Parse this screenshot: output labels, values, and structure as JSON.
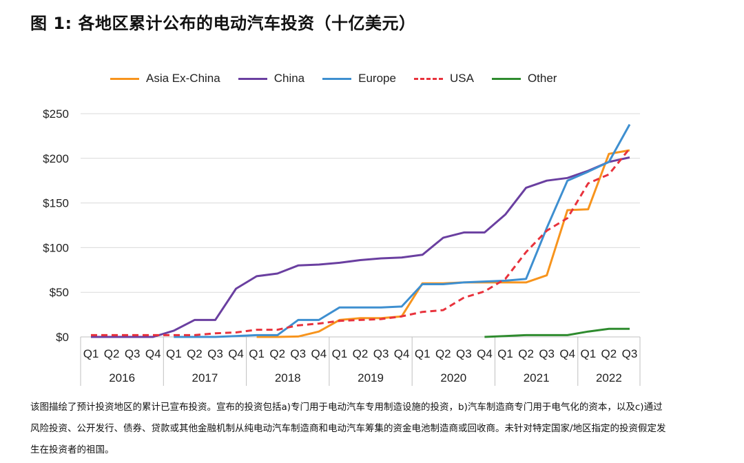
{
  "title": "图 1:  各地区累计公布的电动汽车投资（十亿美元）",
  "caption": "该图描绘了预计投资地区的累计已宣布投资。宣布的投资包括a)专门用于电动汽车专用制造设施的投资，b)汽车制造商专门用于电气化的资本，以及c)通过风险投资、公开发行、债券、贷款或其他金融机制从纯电动汽车制造商和电动汽车筹集的资金电池制造商或回收商。未针对特定国家/地区指定的投资假定发生在投资者的祖国。",
  "chart_data": {
    "type": "line",
    "title": "图 1:  各地区累计公布的电动汽车投资（十亿美元）",
    "xlabel": "",
    "ylabel": "",
    "ylim": [
      0,
      250
    ],
    "yticks": [
      0,
      50,
      100,
      150,
      200,
      250
    ],
    "ytick_labels": [
      "$0",
      "$50",
      "$100",
      "$150",
      "$200",
      "$250"
    ],
    "grid": "horizontal",
    "legend_position": "top",
    "quarters": [
      "Q1",
      "Q2",
      "Q3",
      "Q4",
      "Q1",
      "Q2",
      "Q3",
      "Q4",
      "Q1",
      "Q2",
      "Q3",
      "Q4",
      "Q1",
      "Q2",
      "Q3",
      "Q4",
      "Q1",
      "Q2",
      "Q3",
      "Q4",
      "Q1",
      "Q2",
      "Q3",
      "Q4",
      "Q1",
      "Q2",
      "Q3"
    ],
    "years": [
      {
        "label": "2016",
        "quarters": 4
      },
      {
        "label": "2017",
        "quarters": 4
      },
      {
        "label": "2018",
        "quarters": 4
      },
      {
        "label": "2019",
        "quarters": 4
      },
      {
        "label": "2020",
        "quarters": 4
      },
      {
        "label": "2021",
        "quarters": 4
      },
      {
        "label": "2022",
        "quarters": 3
      }
    ],
    "series": [
      {
        "name": "Asia Ex-China",
        "color": "#F7941D",
        "dash": false,
        "values": [
          null,
          null,
          null,
          null,
          null,
          null,
          null,
          null,
          0,
          0,
          0.5,
          6,
          19,
          21,
          21,
          23,
          60,
          60,
          61,
          61,
          61,
          61,
          69,
          142,
          143,
          205,
          209
        ]
      },
      {
        "name": "China",
        "color": "#6A3FA0",
        "dash": false,
        "values": [
          0,
          0,
          0,
          0,
          7,
          19,
          19,
          54,
          68,
          71,
          80,
          81,
          83,
          86,
          88,
          89,
          92,
          111,
          117,
          117,
          137,
          167,
          175,
          178,
          186,
          196,
          201
        ]
      },
      {
        "name": "Europe",
        "color": "#3E8FD0",
        "dash": false,
        "values": [
          null,
          null,
          null,
          null,
          0,
          0,
          0,
          1,
          2,
          2,
          19,
          19,
          33,
          33,
          33,
          34,
          59,
          59,
          61,
          62,
          63,
          65,
          122,
          175,
          185,
          196,
          238
        ]
      },
      {
        "name": "USA",
        "color": "#E8323C",
        "dash": true,
        "values": [
          2,
          2,
          2,
          2,
          2,
          2,
          4,
          5,
          8,
          8,
          13,
          15,
          18,
          19,
          20,
          23,
          28,
          30,
          44,
          51,
          65,
          95,
          119,
          133,
          172,
          182,
          211
        ]
      },
      {
        "name": "Other",
        "color": "#2E8B2E",
        "dash": false,
        "values": [
          null,
          null,
          null,
          null,
          null,
          null,
          null,
          null,
          null,
          null,
          null,
          null,
          null,
          null,
          null,
          null,
          null,
          null,
          null,
          0,
          1,
          2,
          2,
          2,
          6,
          9,
          9
        ]
      }
    ]
  }
}
